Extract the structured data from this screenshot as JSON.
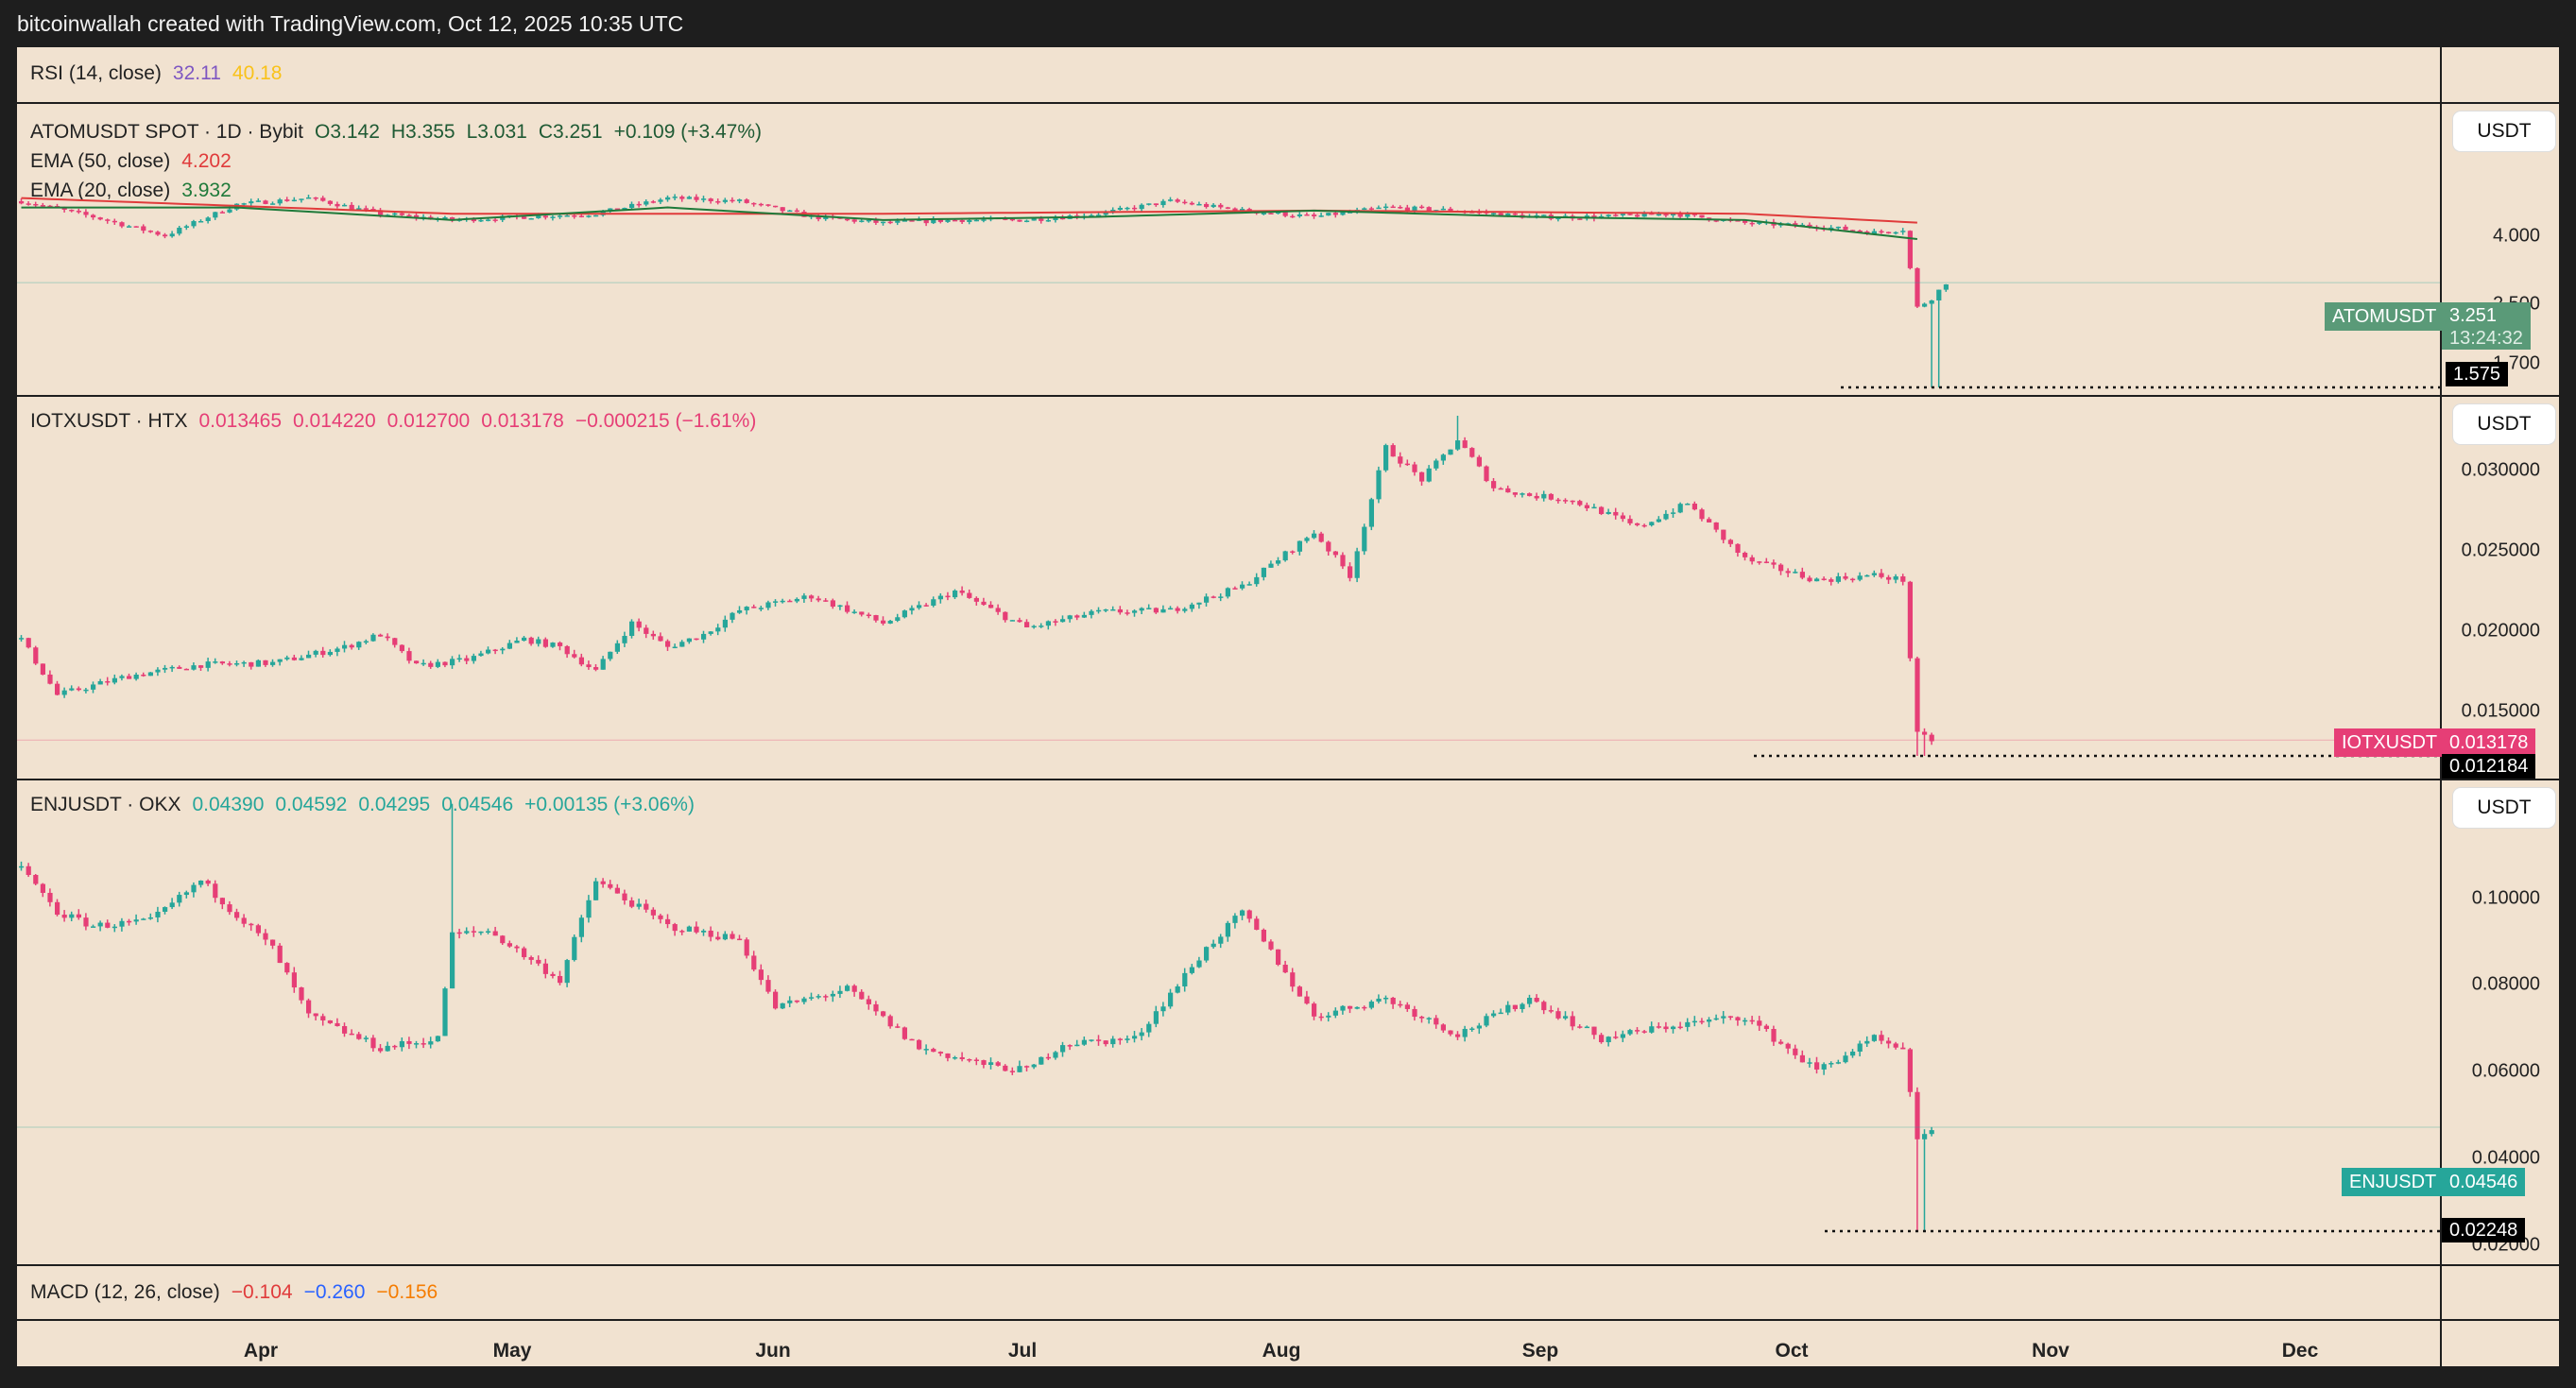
{
  "attribution": "bitcoinwallah created with TradingView.com, Oct 12, 2025 10:35 UTC",
  "colors": {
    "up": "#26a69a",
    "down": "#e63e76",
    "ema50": "#e03b3b",
    "ema20": "#1f7a3a",
    "rsi": "#7e57c2",
    "rsima": "#f9c21a"
  },
  "rsi": {
    "label": "RSI (14, close)",
    "v1": "32.11",
    "v2": "40.18"
  },
  "atom": {
    "symbol": "ATOMUSDT SPOT · 1D · Bybit",
    "o": "O3.142",
    "h": "H3.355",
    "l": "L3.031",
    "c": "C3.251",
    "chg": "+0.109 (+3.47%)",
    "ema50_label": "EMA (50, close)",
    "ema50": "4.202",
    "ema20_label": "EMA (20, close)",
    "ema20": "3.932",
    "unit": "USDT",
    "ticks": [
      "4.000",
      "2.500",
      "1.700"
    ],
    "tag_name": "ATOMUSDT",
    "tag_price": "3.251",
    "tag_time": "13:24:32",
    "low": "1.575"
  },
  "iotx": {
    "symbol": "IOTXUSDT · HTX",
    "o": "0.013465",
    "h": "0.014220",
    "l": "0.012700",
    "c": "0.013178",
    "chg": "−0.000215 (−1.61%)",
    "unit": "USDT",
    "ticks": [
      "0.030000",
      "0.025000",
      "0.020000",
      "0.015000"
    ],
    "tag_name": "IOTXUSDT",
    "tag_price": "0.013178",
    "low": "0.012184"
  },
  "enj": {
    "symbol": "ENJUSDT · OKX",
    "o": "0.04390",
    "h": "0.04592",
    "l": "0.04295",
    "c": "0.04546",
    "chg": "+0.00135 (+3.06%)",
    "unit": "USDT",
    "ticks": [
      "0.10000",
      "0.08000",
      "0.06000",
      "0.04000",
      "0.02000"
    ],
    "tag_name": "ENJUSDT",
    "tag_price": "0.04546",
    "low": "0.02248"
  },
  "macd": {
    "label": "MACD (12, 26, close)",
    "v1": "−0.104",
    "v2": "−0.260",
    "v3": "−0.156"
  },
  "months": [
    "Apr",
    "May",
    "Jun",
    "Jul",
    "Aug",
    "Sep",
    "Oct",
    "Nov",
    "Dec"
  ],
  "chart_data": [
    {
      "type": "candlestick",
      "title": "ATOMUSDT SPOT · 1D · Bybit",
      "ylim": [
        1.5,
        5.5
      ],
      "anchors": [
        [
          0,
          4.55
        ],
        [
          10,
          4.3
        ],
        [
          20,
          4.0
        ],
        [
          30,
          4.5
        ],
        [
          40,
          4.6
        ],
        [
          50,
          4.35
        ],
        [
          60,
          4.25
        ],
        [
          70,
          4.3
        ],
        [
          80,
          4.35
        ],
        [
          90,
          4.6
        ],
        [
          100,
          4.55
        ],
        [
          110,
          4.3
        ],
        [
          120,
          4.2
        ],
        [
          130,
          4.25
        ],
        [
          140,
          4.25
        ],
        [
          150,
          4.35
        ],
        [
          160,
          4.55
        ],
        [
          170,
          4.4
        ],
        [
          180,
          4.3
        ],
        [
          190,
          4.45
        ],
        [
          200,
          4.4
        ],
        [
          210,
          4.3
        ],
        [
          220,
          4.3
        ],
        [
          230,
          4.35
        ],
        [
          240,
          4.2
        ],
        [
          250,
          4.15
        ],
        [
          258,
          4.05
        ],
        [
          262,
          4.1
        ],
        [
          264,
          2.85
        ],
        [
          266,
          3.0
        ],
        [
          268,
          3.25
        ]
      ],
      "ema50": [
        [
          0,
          4.6
        ],
        [
          60,
          4.35
        ],
        [
          120,
          4.35
        ],
        [
          180,
          4.4
        ],
        [
          240,
          4.35
        ],
        [
          265,
          4.202
        ]
      ],
      "ema20": [
        [
          0,
          4.45
        ],
        [
          30,
          4.45
        ],
        [
          60,
          4.25
        ],
        [
          90,
          4.45
        ],
        [
          120,
          4.25
        ],
        [
          150,
          4.3
        ],
        [
          180,
          4.4
        ],
        [
          210,
          4.3
        ],
        [
          240,
          4.25
        ],
        [
          265,
          3.932
        ]
      ]
    },
    {
      "type": "candlestick",
      "title": "IOTXUSDT · HTX",
      "ylim": [
        0.011,
        0.0335
      ],
      "anchors": [
        [
          0,
          0.0195
        ],
        [
          5,
          0.016
        ],
        [
          15,
          0.0172
        ],
        [
          25,
          0.0179
        ],
        [
          35,
          0.018
        ],
        [
          45,
          0.019
        ],
        [
          50,
          0.0198
        ],
        [
          55,
          0.0178
        ],
        [
          62,
          0.0182
        ],
        [
          70,
          0.0195
        ],
        [
          75,
          0.019
        ],
        [
          80,
          0.0175
        ],
        [
          85,
          0.0205
        ],
        [
          90,
          0.019
        ],
        [
          95,
          0.0198
        ],
        [
          100,
          0.0213
        ],
        [
          110,
          0.0222
        ],
        [
          120,
          0.0205
        ],
        [
          130,
          0.0225
        ],
        [
          140,
          0.0202
        ],
        [
          150,
          0.0212
        ],
        [
          160,
          0.0213
        ],
        [
          170,
          0.0228
        ],
        [
          180,
          0.0262
        ],
        [
          185,
          0.0235
        ],
        [
          190,
          0.0315
        ],
        [
          195,
          0.0295
        ],
        [
          200,
          0.032
        ],
        [
          205,
          0.029
        ],
        [
          210,
          0.0285
        ],
        [
          215,
          0.0283
        ],
        [
          220,
          0.0275
        ],
        [
          225,
          0.0265
        ],
        [
          232,
          0.028
        ],
        [
          240,
          0.0245
        ],
        [
          250,
          0.0232
        ],
        [
          258,
          0.0235
        ],
        [
          262,
          0.0232
        ],
        [
          264,
          0.0135
        ],
        [
          266,
          0.013178
        ]
      ]
    },
    {
      "type": "candlestick",
      "title": "ENJUSDT · OKX",
      "ylim": [
        0.016,
        0.118
      ],
      "anchors": [
        [
          0,
          0.103
        ],
        [
          5,
          0.093
        ],
        [
          10,
          0.09
        ],
        [
          18,
          0.091
        ],
        [
          25,
          0.1
        ],
        [
          35,
          0.085
        ],
        [
          40,
          0.07
        ],
        [
          50,
          0.063
        ],
        [
          58,
          0.065
        ],
        [
          60,
          0.088
        ],
        [
          65,
          0.089
        ],
        [
          75,
          0.078
        ],
        [
          80,
          0.1
        ],
        [
          90,
          0.09
        ],
        [
          100,
          0.087
        ],
        [
          105,
          0.072
        ],
        [
          115,
          0.076
        ],
        [
          125,
          0.063
        ],
        [
          135,
          0.059
        ],
        [
          140,
          0.058
        ],
        [
          145,
          0.064
        ],
        [
          155,
          0.065
        ],
        [
          165,
          0.085
        ],
        [
          170,
          0.093
        ],
        [
          175,
          0.082
        ],
        [
          180,
          0.07
        ],
        [
          190,
          0.074
        ],
        [
          200,
          0.066
        ],
        [
          210,
          0.074
        ],
        [
          220,
          0.065
        ],
        [
          230,
          0.068
        ],
        [
          240,
          0.07
        ],
        [
          250,
          0.058
        ],
        [
          258,
          0.065
        ],
        [
          262,
          0.062
        ],
        [
          264,
          0.043
        ],
        [
          266,
          0.04546
        ]
      ]
    }
  ]
}
